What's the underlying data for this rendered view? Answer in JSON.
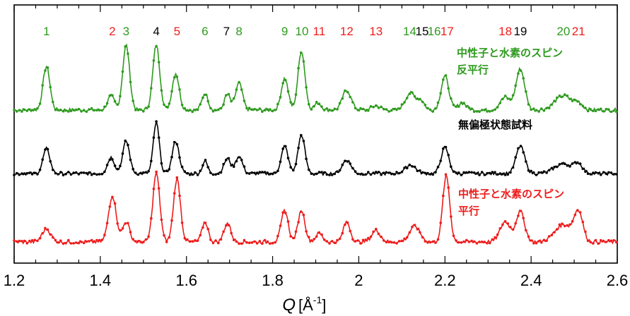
{
  "colors": {
    "green": "#2e9a1e",
    "black": "#000000",
    "red": "#ee1c1c"
  },
  "chart_data": {
    "type": "line",
    "xlabel_symbol": "Q",
    "xlabel_unit": "[Å",
    "xlabel_unit_sup": "-1",
    "xlabel_unit_close": "]",
    "xlim": [
      1.2,
      2.6
    ],
    "xticks": [
      "1.2",
      "1.4",
      "1.6",
      "1.8",
      "2",
      "2.2",
      "2.4",
      "2.6"
    ],
    "xtick_values": [
      1.2,
      1.4,
      1.6,
      1.8,
      2.0,
      2.2,
      2.4,
      2.6
    ],
    "peak_labels": [
      {
        "text": "1",
        "q": 1.275,
        "color": "green"
      },
      {
        "text": "2",
        "q": 1.428,
        "color": "red"
      },
      {
        "text": "3",
        "q": 1.46,
        "color": "green"
      },
      {
        "text": "4",
        "q": 1.53,
        "color": "black"
      },
      {
        "text": "5",
        "q": 1.578,
        "color": "red"
      },
      {
        "text": "6",
        "q": 1.643,
        "color": "green"
      },
      {
        "text": "7",
        "q": 1.693,
        "color": "black"
      },
      {
        "text": "8",
        "q": 1.722,
        "color": "green"
      },
      {
        "text": "9",
        "q": 1.828,
        "color": "green"
      },
      {
        "text": "10",
        "q": 1.868,
        "color": "green"
      },
      {
        "text": "11",
        "q": 1.908,
        "color": "red"
      },
      {
        "text": "12",
        "q": 1.972,
        "color": "red"
      },
      {
        "text": "13",
        "q": 2.04,
        "color": "red"
      },
      {
        "text": "14",
        "q": 2.118,
        "color": "green"
      },
      {
        "text": "15",
        "q": 2.147,
        "color": "black"
      },
      {
        "text": "16",
        "q": 2.175,
        "color": "green"
      },
      {
        "text": "17",
        "q": 2.205,
        "color": "red"
      },
      {
        "text": "18",
        "q": 2.34,
        "color": "red"
      },
      {
        "text": "19",
        "q": 2.375,
        "color": "black"
      },
      {
        "text": "20",
        "q": 2.475,
        "color": "green"
      },
      {
        "text": "21",
        "q": 2.51,
        "color": "red"
      }
    ],
    "series": [
      {
        "name": "中性子と水素のスピン反平行",
        "label_lines": [
          "中性子と水素のスピン",
          "反平行"
        ],
        "color": "green",
        "baseline": 0.0,
        "peaks": [
          [
            1.275,
            0.62,
            0.008
          ],
          [
            1.425,
            0.2,
            0.008
          ],
          [
            1.46,
            0.92,
            0.008
          ],
          [
            1.53,
            0.92,
            0.008
          ],
          [
            1.575,
            0.52,
            0.008
          ],
          [
            1.643,
            0.24,
            0.007
          ],
          [
            1.695,
            0.22,
            0.007
          ],
          [
            1.722,
            0.38,
            0.008
          ],
          [
            1.828,
            0.45,
            0.008
          ],
          [
            1.867,
            0.84,
            0.008
          ],
          [
            1.905,
            0.1,
            0.008
          ],
          [
            1.972,
            0.28,
            0.01
          ],
          [
            2.04,
            0.06,
            0.01
          ],
          [
            2.12,
            0.24,
            0.012
          ],
          [
            2.145,
            0.12,
            0.008
          ],
          [
            2.2,
            0.48,
            0.009
          ],
          [
            2.24,
            0.1,
            0.01
          ],
          [
            2.34,
            0.18,
            0.012
          ],
          [
            2.375,
            0.58,
            0.01
          ],
          [
            2.475,
            0.2,
            0.02
          ],
          [
            2.51,
            0.08,
            0.01
          ]
        ]
      },
      {
        "name": "無偏極状態試料",
        "label_lines": [
          "無偏極状態試料"
        ],
        "color": "black",
        "baseline": 0.0,
        "peaks": [
          [
            1.275,
            0.4,
            0.008
          ],
          [
            1.425,
            0.26,
            0.008
          ],
          [
            1.46,
            0.52,
            0.008
          ],
          [
            1.53,
            0.82,
            0.007
          ],
          [
            1.575,
            0.52,
            0.008
          ],
          [
            1.643,
            0.2,
            0.006
          ],
          [
            1.695,
            0.24,
            0.008
          ],
          [
            1.722,
            0.28,
            0.008
          ],
          [
            1.828,
            0.44,
            0.008
          ],
          [
            1.867,
            0.62,
            0.008
          ],
          [
            1.972,
            0.22,
            0.01
          ],
          [
            2.12,
            0.14,
            0.012
          ],
          [
            2.2,
            0.42,
            0.009
          ],
          [
            2.375,
            0.44,
            0.01
          ],
          [
            2.475,
            0.16,
            0.02
          ],
          [
            2.51,
            0.14,
            0.01
          ]
        ]
      },
      {
        "name": "中性子と水素のスピン平行",
        "label_lines": [
          "中性子と水素のスピン",
          "平行"
        ],
        "color": "red",
        "baseline": 0.0,
        "peaks": [
          [
            1.275,
            0.18,
            0.01
          ],
          [
            1.428,
            0.64,
            0.009
          ],
          [
            1.46,
            0.28,
            0.008
          ],
          [
            1.53,
            0.96,
            0.008
          ],
          [
            1.578,
            0.88,
            0.008
          ],
          [
            1.643,
            0.28,
            0.007
          ],
          [
            1.695,
            0.26,
            0.008
          ],
          [
            1.828,
            0.44,
            0.008
          ],
          [
            1.867,
            0.44,
            0.008
          ],
          [
            1.908,
            0.12,
            0.008
          ],
          [
            1.972,
            0.28,
            0.008
          ],
          [
            2.04,
            0.16,
            0.01
          ],
          [
            2.13,
            0.22,
            0.012
          ],
          [
            2.203,
            0.92,
            0.008
          ],
          [
            2.34,
            0.28,
            0.012
          ],
          [
            2.375,
            0.42,
            0.01
          ],
          [
            2.475,
            0.24,
            0.02
          ],
          [
            2.51,
            0.4,
            0.01
          ]
        ]
      }
    ]
  }
}
